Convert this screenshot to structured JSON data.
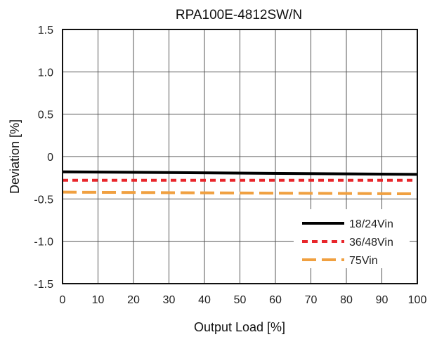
{
  "chart_data": {
    "type": "line",
    "title": "RPA100E-4812SW/N",
    "xlabel": "Output Load [%]",
    "ylabel": "Deviation [%]",
    "xlim": [
      0,
      100
    ],
    "ylim": [
      -1.5,
      1.5
    ],
    "x_ticks": [
      0,
      10,
      20,
      30,
      40,
      50,
      60,
      70,
      80,
      90,
      100
    ],
    "x_tick_labels": [
      "0",
      "10",
      "20",
      "30",
      "40",
      "50",
      "60",
      "70",
      "80",
      "90",
      "100"
    ],
    "y_ticks": [
      1.5,
      1.0,
      0.5,
      0,
      -0.5,
      -1.0,
      -1.5
    ],
    "y_tick_labels": [
      "1.5",
      "1.0",
      "0.5",
      "0",
      "-0.5",
      "-1.0",
      "-1.5"
    ],
    "grid": true,
    "legend_position": "bottom-right",
    "series": [
      {
        "name": "18/24Vin",
        "color": "#000000",
        "style": "solid",
        "x": [
          0,
          100
        ],
        "values": [
          -0.18,
          -0.21
        ]
      },
      {
        "name": "36/48Vin",
        "color": "#e8262b",
        "style": "dotted",
        "x": [
          0,
          100
        ],
        "values": [
          -0.28,
          -0.28
        ]
      },
      {
        "name": "75Vin",
        "color": "#f0a040",
        "style": "dashed",
        "x": [
          0,
          100
        ],
        "values": [
          -0.42,
          -0.44
        ]
      }
    ]
  }
}
